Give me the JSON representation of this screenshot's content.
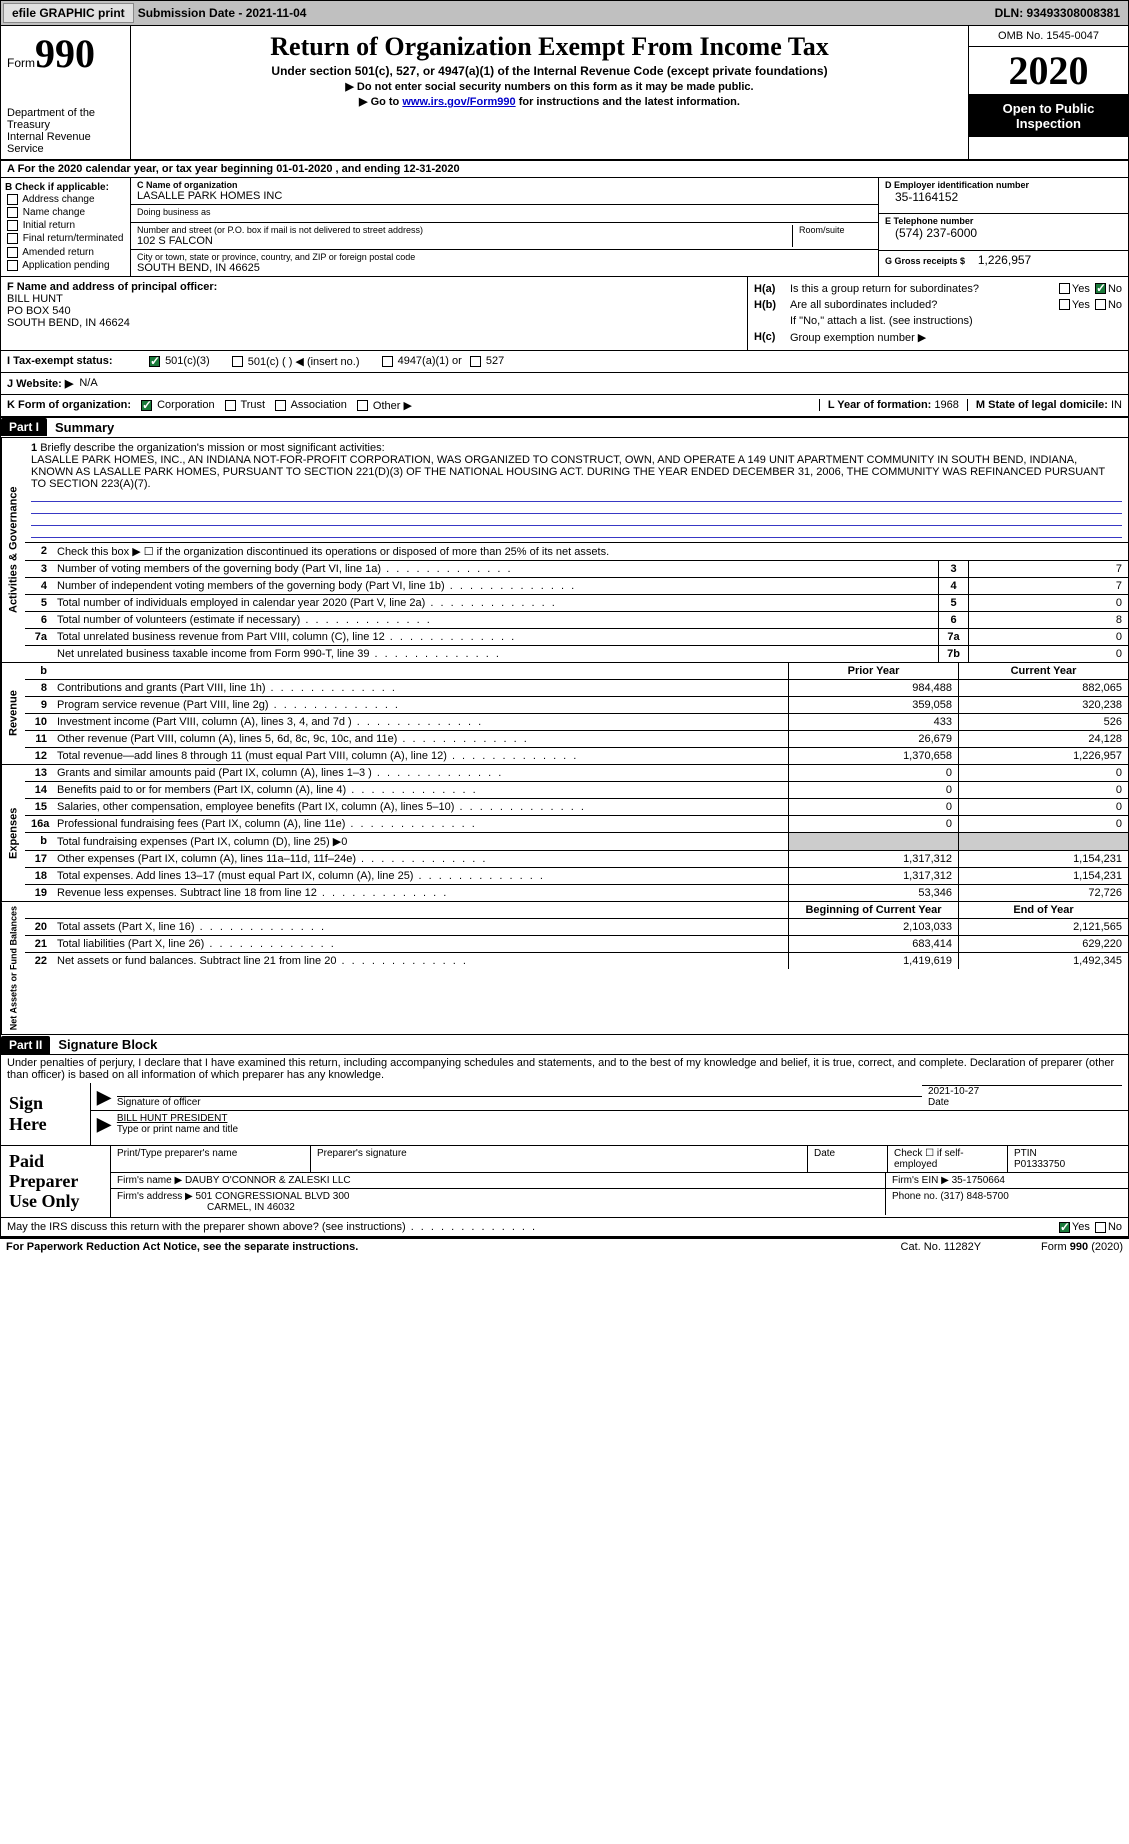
{
  "topbar": {
    "efile_print": "efile GRAPHIC print",
    "submission_label": "Submission Date - 2021-11-04",
    "dln_label": "DLN: 93493308008381"
  },
  "header": {
    "form_prefix": "Form",
    "form_number": "990",
    "dept": "Department of the Treasury\nInternal Revenue Service",
    "title": "Return of Organization Exempt From Income Tax",
    "sub": "Under section 501(c), 527, or 4947(a)(1) of the Internal Revenue Code (except private foundations)",
    "hint1": "▶ Do not enter social security numbers on this form as it may be made public.",
    "hint2_pre": "▶ Go to ",
    "hint2_link": "www.irs.gov/Form990",
    "hint2_post": " for instructions and the latest information.",
    "omb": "OMB No. 1545-0047",
    "year": "2020",
    "open": "Open to Public Inspection"
  },
  "cal_year": "A For the 2020 calendar year, or tax year beginning 01-01-2020    , and ending 12-31-2020",
  "b": {
    "label": "B Check if applicable:",
    "address_change": "Address change",
    "name_change": "Name change",
    "initial_return": "Initial return",
    "final_return": "Final return/terminated",
    "amended_return": "Amended return",
    "app_pending": "Application pending"
  },
  "c": {
    "name_lbl": "C Name of organization",
    "name": "LASALLE PARK HOMES INC",
    "dba_lbl": "Doing business as",
    "street_lbl": "Number and street (or P.O. box if mail is not delivered to street address)",
    "street": "102 S FALCON",
    "room_lbl": "Room/suite",
    "city_lbl": "City or town, state or province, country, and ZIP or foreign postal code",
    "city": "SOUTH BEND, IN  46625"
  },
  "d": {
    "ein_lbl": "D Employer identification number",
    "ein": "35-1164152",
    "phone_lbl": "E Telephone number",
    "phone": "(574) 237-6000",
    "gross_lbl": "G Gross receipts $",
    "gross": "1,226,957"
  },
  "f": {
    "lbl": "F  Name and address of principal officer:",
    "name": "BILL HUNT",
    "addr1": "PO BOX 540",
    "addr2": "SOUTH BEND, IN  46624"
  },
  "h": {
    "a_lbl": "H(a)",
    "a_txt": "Is this a group return for subordinates?",
    "b_lbl": "H(b)",
    "b_txt": "Are all subordinates included?",
    "b_note": "If \"No,\" attach a list. (see instructions)",
    "c_lbl": "H(c)",
    "c_txt": "Group exemption number ▶",
    "yes": "Yes",
    "no": "No"
  },
  "i": {
    "lbl": "I  Tax-exempt status:",
    "501c3": "501(c)(3)",
    "501c": "501(c) (   ) ◀ (insert no.)",
    "4947": "4947(a)(1) or",
    "527": "527"
  },
  "j": {
    "lbl": "J  Website: ▶",
    "val": "N/A"
  },
  "k": {
    "lbl": "K Form of organization:",
    "corp": "Corporation",
    "trust": "Trust",
    "assoc": "Association",
    "other": "Other ▶",
    "l_lbl": "L Year of formation:",
    "l_val": "1968",
    "m_lbl": "M State of legal domicile:",
    "m_val": "IN"
  },
  "part1": {
    "label": "Part I",
    "title": "Summary"
  },
  "gov": {
    "tab": "Activities & Governance",
    "q1_lbl": "1",
    "q1_txt": "Briefly describe the organization's mission or most significant activities:",
    "q1_val": "LASALLE PARK HOMES, INC., AN INDIANA NOT-FOR-PROFIT CORPORATION, WAS ORGANIZED TO CONSTRUCT, OWN, AND OPERATE A 149 UNIT APARTMENT COMMUNITY IN SOUTH BEND, INDIANA, KNOWN AS LASALLE PARK HOMES, PURSUANT TO SECTION 221(D)(3) OF THE NATIONAL HOUSING ACT. DURING THE YEAR ENDED DECEMBER 31, 2006, THE COMMUNITY WAS REFINANCED PURSUANT TO SECTION 223(A)(7).",
    "q2_txt": "Check this box ▶ ☐  if the organization discontinued its operations or disposed of more than 25% of its net assets.",
    "rows": [
      {
        "n": "3",
        "t": "Number of voting members of the governing body (Part VI, line 1a)",
        "box": "3",
        "v": "7"
      },
      {
        "n": "4",
        "t": "Number of independent voting members of the governing body (Part VI, line 1b)",
        "box": "4",
        "v": "7"
      },
      {
        "n": "5",
        "t": "Total number of individuals employed in calendar year 2020 (Part V, line 2a)",
        "box": "5",
        "v": "0"
      },
      {
        "n": "6",
        "t": "Total number of volunteers (estimate if necessary)",
        "box": "6",
        "v": "8"
      },
      {
        "n": "7a",
        "t": "Total unrelated business revenue from Part VIII, column (C), line 12",
        "box": "7a",
        "v": "0"
      },
      {
        "n": "",
        "t": "Net unrelated business taxable income from Form 990-T, line 39",
        "box": "7b",
        "v": "0"
      }
    ]
  },
  "rev": {
    "tab": "Revenue",
    "hdr_b": "b",
    "prior": "Prior Year",
    "current": "Current Year",
    "rows": [
      {
        "n": "8",
        "t": "Contributions and grants (Part VIII, line 1h)",
        "c1": "984,488",
        "c2": "882,065"
      },
      {
        "n": "9",
        "t": "Program service revenue (Part VIII, line 2g)",
        "c1": "359,058",
        "c2": "320,238"
      },
      {
        "n": "10",
        "t": "Investment income (Part VIII, column (A), lines 3, 4, and 7d )",
        "c1": "433",
        "c2": "526"
      },
      {
        "n": "11",
        "t": "Other revenue (Part VIII, column (A), lines 5, 6d, 8c, 9c, 10c, and 11e)",
        "c1": "26,679",
        "c2": "24,128"
      },
      {
        "n": "12",
        "t": "Total revenue—add lines 8 through 11 (must equal Part VIII, column (A), line 12)",
        "c1": "1,370,658",
        "c2": "1,226,957"
      }
    ]
  },
  "exp": {
    "tab": "Expenses",
    "rows": [
      {
        "n": "13",
        "t": "Grants and similar amounts paid (Part IX, column (A), lines 1–3 )",
        "c1": "0",
        "c2": "0"
      },
      {
        "n": "14",
        "t": "Benefits paid to or for members (Part IX, column (A), line 4)",
        "c1": "0",
        "c2": "0"
      },
      {
        "n": "15",
        "t": "Salaries, other compensation, employee benefits (Part IX, column (A), lines 5–10)",
        "c1": "0",
        "c2": "0"
      },
      {
        "n": "16a",
        "t": "Professional fundraising fees (Part IX, column (A), line 11e)",
        "c1": "0",
        "c2": "0"
      },
      {
        "n": "b",
        "t": "Total fundraising expenses (Part IX, column (D), line 25) ▶0",
        "c1": "",
        "c2": ""
      },
      {
        "n": "17",
        "t": "Other expenses (Part IX, column (A), lines 11a–11d, 11f–24e)",
        "c1": "1,317,312",
        "c2": "1,154,231"
      },
      {
        "n": "18",
        "t": "Total expenses. Add lines 13–17 (must equal Part IX, column (A), line 25)",
        "c1": "1,317,312",
        "c2": "1,154,231"
      },
      {
        "n": "19",
        "t": "Revenue less expenses. Subtract line 18 from line 12",
        "c1": "53,346",
        "c2": "72,726"
      }
    ]
  },
  "net": {
    "tab": "Net Assets or Fund Balances",
    "hdr1": "Beginning of Current Year",
    "hdr2": "End of Year",
    "rows": [
      {
        "n": "20",
        "t": "Total assets (Part X, line 16)",
        "c1": "2,103,033",
        "c2": "2,121,565"
      },
      {
        "n": "21",
        "t": "Total liabilities (Part X, line 26)",
        "c1": "683,414",
        "c2": "629,220"
      },
      {
        "n": "22",
        "t": "Net assets or fund balances. Subtract line 21 from line 20",
        "c1": "1,419,619",
        "c2": "1,492,345"
      }
    ]
  },
  "part2": {
    "label": "Part II",
    "title": "Signature Block"
  },
  "sig": {
    "decl": "Under penalties of perjury, I declare that I have examined this return, including accompanying schedules and statements, and to the best of my knowledge and belief, it is true, correct, and complete. Declaration of preparer (other than officer) is based on all information of which preparer has any knowledge.",
    "here": "Sign Here",
    "off_lbl": "Signature of officer",
    "date": "2021-10-27",
    "date_lbl": "Date",
    "name": "BILL HUNT PRESIDENT",
    "name_lbl": "Type or print name and title"
  },
  "prep": {
    "label": "Paid Preparer Use Only",
    "pname_lbl": "Print/Type preparer's name",
    "psig_lbl": "Preparer's signature",
    "pdate_lbl": "Date",
    "pself_lbl": "Check ☐ if self-employed",
    "ptin_lbl": "PTIN",
    "ptin": "P01333750",
    "firm_name_lbl": "Firm's name    ▶",
    "firm_name": "DAUBY O'CONNOR & ZALESKI LLC",
    "firm_ein_lbl": "Firm's EIN ▶",
    "firm_ein": "35-1750664",
    "firm_addr_lbl": "Firm's address ▶",
    "firm_addr1": "501 CONGRESSIONAL BLVD 300",
    "firm_addr2": "CARMEL, IN  46032",
    "phone_lbl": "Phone no.",
    "phone": "(317) 848-5700"
  },
  "discuss": {
    "txt": "May the IRS discuss this return with the preparer shown above? (see instructions)",
    "yes": "Yes",
    "no": "No"
  },
  "footer": {
    "left": "For Paperwork Reduction Act Notice, see the separate instructions.",
    "mid": "Cat. No. 11282Y",
    "right_pre": "Form ",
    "right_form": "990",
    "right_post": " (2020)"
  }
}
